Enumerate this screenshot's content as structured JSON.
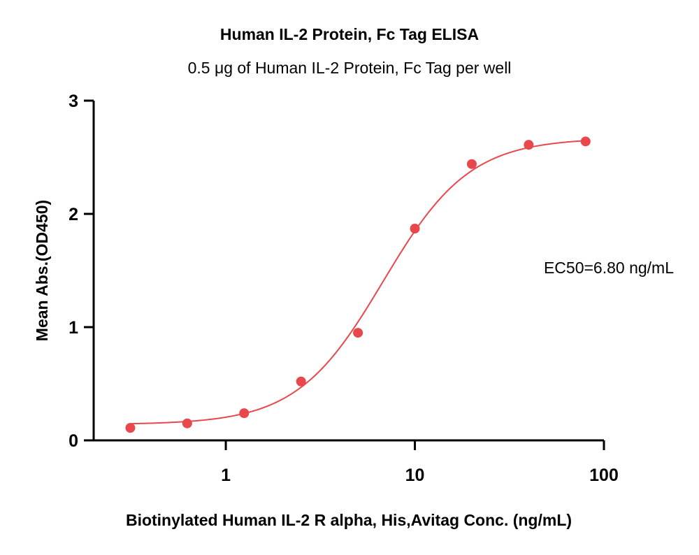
{
  "chart_data": {
    "type": "scatter",
    "title": "Human IL-2 Protein, Fc Tag ELISA",
    "subtitle": "0.5 μg of Human IL-2 Protein, Fc Tag per well",
    "xlabel": "Biotinylated Human IL-2 R alpha, His,Avitag Conc. (ng/mL)",
    "ylabel": "Mean Abs.(OD450)",
    "x_scale": "log",
    "xlim": [
      0.2,
      100
    ],
    "ylim": [
      0,
      3
    ],
    "x_ticks": [
      {
        "value": 1,
        "label": "1"
      },
      {
        "value": 10,
        "label": "10"
      },
      {
        "value": 100,
        "label": "100"
      }
    ],
    "y_ticks": [
      {
        "value": 0,
        "label": "0"
      },
      {
        "value": 1,
        "label": "1"
      },
      {
        "value": 2,
        "label": "2"
      },
      {
        "value": 3,
        "label": "3"
      }
    ],
    "points": {
      "x": [
        0.3125,
        0.625,
        1.25,
        2.5,
        5,
        10,
        20,
        40,
        80
      ],
      "y": [
        0.11,
        0.15,
        0.24,
        0.52,
        0.95,
        1.87,
        2.44,
        2.61,
        2.64
      ]
    },
    "fit": {
      "model": "4PL",
      "bottom": 0.14,
      "top": 2.67,
      "ec50": 6.8,
      "hill": 1.9
    },
    "annotation": "EC50=6.80 ng/mL",
    "grid": false,
    "color": "#e8474c"
  }
}
